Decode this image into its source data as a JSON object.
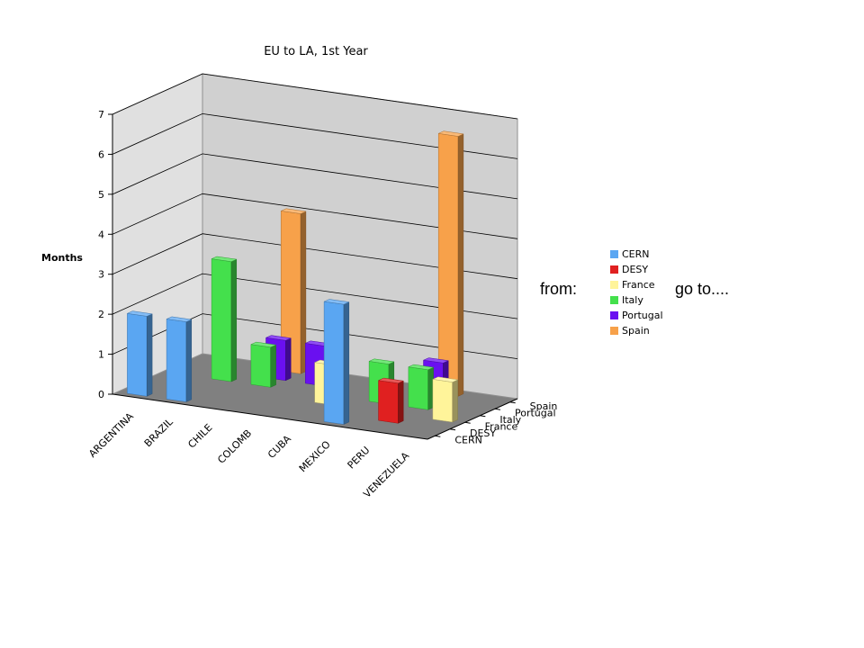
{
  "chart_data": {
    "type": "bar",
    "title": "EU to LA, 1st Year",
    "xlabel": "",
    "ylabel": "Months",
    "ylim": [
      0,
      7
    ],
    "yticks": [
      0,
      1,
      2,
      3,
      4,
      5,
      6,
      7
    ],
    "categories": [
      "ARGENTINA",
      "BRAZIL",
      "CHILE",
      "COLOMB",
      "CUBA",
      "MEXICO",
      "PERU",
      "VENEZUELA"
    ],
    "series": [
      {
        "name": "CERN",
        "color": "#5aa6f2",
        "values": [
          2,
          2,
          0,
          0,
          0,
          3,
          0,
          0
        ]
      },
      {
        "name": "DESY",
        "color": "#e02020",
        "values": [
          0,
          0,
          0,
          0,
          0,
          0,
          1,
          0
        ]
      },
      {
        "name": "France",
        "color": "#fff49a",
        "values": [
          0,
          0,
          0,
          0,
          1,
          0,
          0,
          1
        ]
      },
      {
        "name": "Italy",
        "color": "#44e04c",
        "values": [
          0,
          3,
          1,
          0,
          0,
          1,
          1,
          0
        ]
      },
      {
        "name": "Portugal",
        "color": "#6a10f0",
        "values": [
          0,
          0,
          1,
          1,
          0,
          0,
          1,
          0
        ]
      },
      {
        "name": "Spain",
        "color": "#f7a14a",
        "values": [
          0,
          0,
          4,
          0,
          0,
          0,
          6.5,
          0
        ]
      }
    ],
    "depth_axis_labels": [
      "CERN",
      "DESY",
      "France",
      "Italy",
      "Portugal",
      "Spain"
    ],
    "legend_position": "right",
    "grid": true
  },
  "annotations": {
    "from_label": "from:",
    "goto_label": "go to...."
  }
}
